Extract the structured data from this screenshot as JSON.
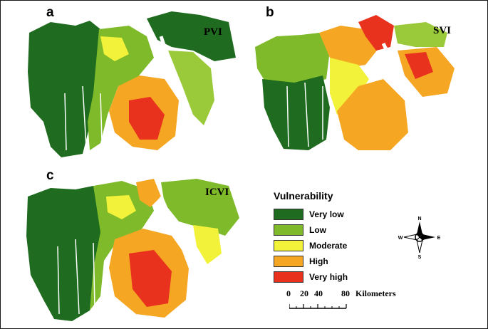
{
  "panels": [
    {
      "letter": "a",
      "title": "PVI"
    },
    {
      "letter": "b",
      "title": "SVI"
    },
    {
      "letter": "c",
      "title": "ICVI"
    }
  ],
  "legend": {
    "title": "Vulnerability",
    "classes": [
      {
        "label": "Very low",
        "color": "#1f6b1f"
      },
      {
        "label": "Low",
        "color": "#7fba2a"
      },
      {
        "label": "Moderate",
        "color": "#f2f23a"
      },
      {
        "label": "High",
        "color": "#f5a623"
      },
      {
        "label": "Very high",
        "color": "#e8321e"
      }
    ]
  },
  "scale_bar": {
    "ticks": [
      "0",
      "20",
      "40",
      "80"
    ],
    "unit": "Kilometers"
  },
  "north_arrow": {
    "n": "N",
    "s": "S",
    "e": "E",
    "w": "W"
  }
}
